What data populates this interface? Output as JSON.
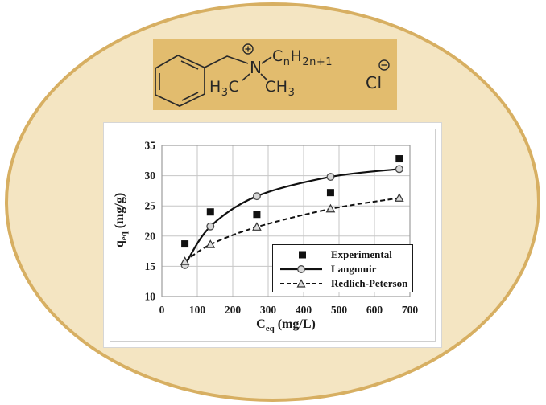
{
  "colors": {
    "ellipse_fill": "#f4e5c2",
    "ellipse_border": "#d7af62",
    "chem_box_fill": "#e2bc6e",
    "gridline": "#c6c6c6",
    "plot_border": "#9c9c9c",
    "series_black": "#111111",
    "marker_gray_fill": "#d8d8d8"
  },
  "chem": {
    "n_label": "N",
    "chain": {
      "c": "C",
      "n_sub": "n",
      "h": "H",
      "h_sub": "2n+1"
    },
    "methyl_left": {
      "h": "H",
      "sub": "3",
      "c": "C"
    },
    "methyl_right": {
      "c": "C",
      "h": "H",
      "sub": "3"
    },
    "chloride": "Cl"
  },
  "chart_data": {
    "type": "scatter",
    "title": "",
    "xlabel": "C_eq (mg/L)",
    "ylabel": "q_eq (mg/g)",
    "xlabel_parts": {
      "main": "C",
      "sub": "eq",
      "rest": " (mg/L)"
    },
    "ylabel_parts": {
      "main": "q",
      "sub": "eq",
      "rest": " (mg/g)"
    },
    "xlim": [
      0,
      700
    ],
    "ylim": [
      10,
      35
    ],
    "x_ticks": [
      0,
      100,
      200,
      300,
      400,
      500,
      600,
      700
    ],
    "y_ticks": [
      10,
      15,
      20,
      25,
      30,
      35
    ],
    "grid": true,
    "legend_position": "lower-right",
    "series": [
      {
        "name": "Experimental",
        "marker": "square",
        "line": "none",
        "x": [
          65,
          137,
          268,
          476,
          670
        ],
        "y": [
          18.7,
          24.0,
          23.6,
          27.2,
          32.8
        ]
      },
      {
        "name": "Langmuir",
        "marker": "circle",
        "line": "solid",
        "x": [
          65,
          137,
          268,
          476,
          670
        ],
        "y": [
          15.2,
          21.6,
          26.6,
          29.8,
          31.1
        ]
      },
      {
        "name": "Redlich-Peterson",
        "marker": "triangle",
        "line": "dashed",
        "x": [
          65,
          137,
          268,
          476,
          670
        ],
        "y": [
          15.8,
          18.6,
          21.5,
          24.5,
          26.3
        ]
      }
    ]
  }
}
